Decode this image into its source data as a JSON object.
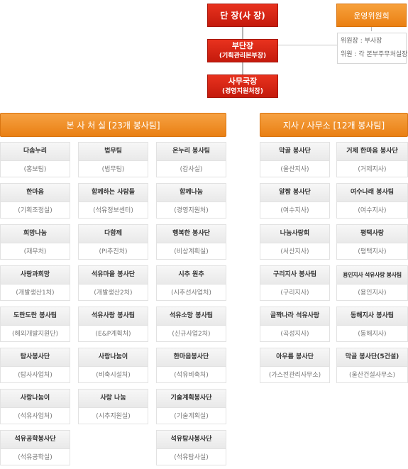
{
  "header": {
    "head": "단 장(사 장)",
    "deputy": [
      "부단장",
      "(기획관리본부장)"
    ],
    "secretary": [
      "사무국장",
      "(경영지원처장)"
    ],
    "committee": "운영위원회",
    "committee_info": [
      "위원장 : 부사장",
      "위원 : 각 본부주무처실장"
    ]
  },
  "sections": {
    "hq": "본 사 처 실 [23개 봉사팀]",
    "branch": "지사 / 사무소 [12개 봉사팀]"
  },
  "hq_columns": [
    [
      {
        "name": "다솜누리",
        "dept": "(홍보팀)"
      },
      {
        "name": "한마음",
        "dept": "(기획조정실)"
      },
      {
        "name": "희망나눔",
        "dept": "(재무처)"
      },
      {
        "name": "사랑과희망",
        "dept": "(개발생산1처)"
      },
      {
        "name": "도란도란 봉사팀",
        "dept": "(해외개발지원단)"
      },
      {
        "name": "탐사봉사단",
        "dept": "(탐사사업처)"
      },
      {
        "name": "사랑나눔이",
        "dept": "(석유사업처)"
      },
      {
        "name": "석유공학봉사단",
        "dept": "(석유공학실)"
      }
    ],
    [
      {
        "name": "법무팀",
        "dept": "(법무팀)"
      },
      {
        "name": "함께하는 사람들",
        "dept": "(석유정보센터)"
      },
      {
        "name": "다함께",
        "dept": "(PI추진처)"
      },
      {
        "name": "석유마을 봉사단",
        "dept": "(개발생산2처)"
      },
      {
        "name": "석유사랑 봉사팀",
        "dept": "(E&P계획처)"
      },
      {
        "name": "사랑나눔이",
        "dept": "(비축시설처)"
      },
      {
        "name": "사랑 나눔",
        "dept": "(시추지원실)"
      }
    ],
    [
      {
        "name": "온누리 봉사팀",
        "dept": "(감사실)"
      },
      {
        "name": "함께나눔",
        "dept": "(경영지원처)"
      },
      {
        "name": "행복한 봉사단",
        "dept": "(비상계획실)"
      },
      {
        "name": "시추 원추",
        "dept": "(시추선사업처)"
      },
      {
        "name": "석유소망 봉사팀",
        "dept": "(신규사업2처)"
      },
      {
        "name": "한마음봉사단",
        "dept": "(석유비축처)"
      },
      {
        "name": "기술계획봉사단",
        "dept": "(기술계획실)"
      },
      {
        "name": "석유탐사봉사단",
        "dept": "(석유탐사실)"
      }
    ]
  ],
  "branch_columns": [
    [
      {
        "name": "막골 봉사단",
        "dept": "(울산지사)"
      },
      {
        "name": "알짬 봉사단",
        "dept": "(여수지사)"
      },
      {
        "name": "나눔사랑회",
        "dept": "(서산지사)"
      },
      {
        "name": "구리지사 봉사팀",
        "dept": "(구리지사)"
      },
      {
        "name": "골짝나라 석유사랑",
        "dept": "(곡성지사)"
      },
      {
        "name": "아우름 봉사단",
        "dept": "(가스전관리사무소)"
      }
    ],
    [
      {
        "name": "거제 한마음 봉사단",
        "dept": "(거제지사)"
      },
      {
        "name": "여수나래 봉사팀",
        "dept": "(여수지사)"
      },
      {
        "name": "평택사랑",
        "dept": "(평택지사)"
      },
      {
        "name": "용인지사 석유사랑 봉사팀",
        "dept": "(용인지사)"
      },
      {
        "name": "동해지사 봉사팀",
        "dept": "(동해지사)"
      },
      {
        "name": "막골 봉사단(5건설)",
        "dept": "(울산건설사무소)"
      }
    ]
  ],
  "colors": {
    "red": "#d0220f",
    "orange": "#f0901f",
    "line": "#b5b5b5"
  }
}
